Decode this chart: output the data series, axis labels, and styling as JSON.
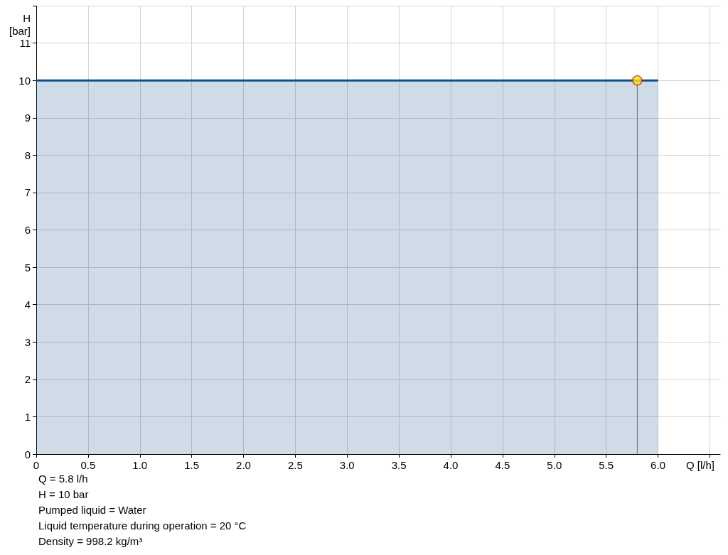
{
  "chart_data": {
    "type": "area",
    "xlabel": "Q [l/h]",
    "ylabel": "H\n[bar]",
    "xlim": [
      0,
      6.6
    ],
    "xticks": [
      0,
      {
        "value": 0.5,
        "label": "0.5"
      },
      {
        "value": 1,
        "label": "1.0"
      },
      {
        "value": 1.5,
        "label": "1.5"
      },
      {
        "value": 2,
        "label": "2.0"
      },
      {
        "value": 2.5,
        "label": "2.5"
      },
      {
        "value": 3,
        "label": "3.0"
      },
      {
        "value": 3.5,
        "label": "3.5"
      },
      {
        "value": 4,
        "label": "4.0"
      },
      {
        "value": 4.5,
        "label": "4.5"
      },
      {
        "value": 5,
        "label": "5.0"
      },
      {
        "value": 5.5,
        "label": "5.5"
      },
      {
        "value": 6,
        "label": "6.0"
      },
      {
        "value": 6.5,
        "label": null
      }
    ],
    "ylim": [
      0,
      12
    ],
    "yticks": [
      0,
      1,
      2,
      3,
      4,
      5,
      6,
      7,
      8,
      9,
      10,
      11,
      {
        "value": 12,
        "label": null
      }
    ],
    "grid": true,
    "series": [
      {
        "color": "#0d4f8b",
        "x": [
          0,
          6
        ],
        "values": [
          10,
          10
        ]
      },
      {
        "type": "line",
        "color": "#6e6e6e",
        "x": [
          5.8,
          5.8
        ],
        "values": [
          0,
          10
        ]
      },
      {
        "type": "scatter",
        "color": "#ffe600",
        "x": [
          5.8
        ],
        "values": [
          10
        ]
      }
    ],
    "annotations": [
      "Q = 5.8 l/h",
      "H = 10 bar",
      "Pumped liquid = Water",
      "Liquid temperature during operation = 20 °C",
      "Density = 998.2 kg/m³"
    ]
  }
}
